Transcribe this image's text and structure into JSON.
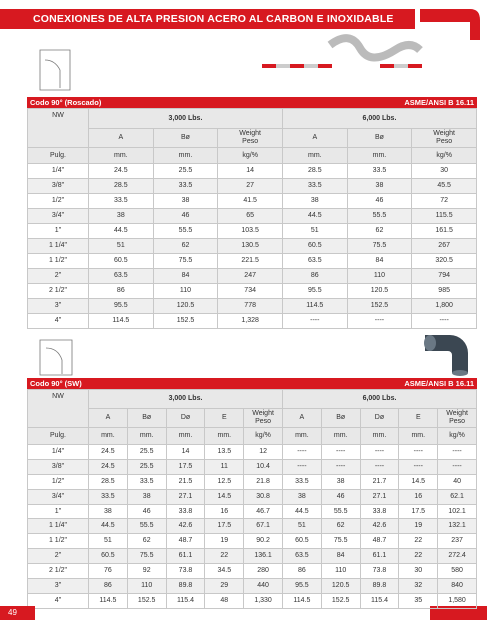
{
  "header": {
    "title": "CONEXIONES DE ALTA PRESION ACERO AL CARBON E INOXIDABLE"
  },
  "tables": [
    {
      "title": "Codo 90° (Roscado)",
      "standard": "ASME/ANSI B 16.11",
      "nw": "NW",
      "pressures": [
        "3,000 Lbs.",
        "6,000 Lbs."
      ],
      "columns": [
        "A",
        "Bø",
        "Weight\nPeso",
        "A",
        "Bø",
        "Weight\nPeso"
      ],
      "units": [
        "Pulg.",
        "mm.",
        "mm.",
        "kg/%",
        "mm.",
        "mm.",
        "kg/%"
      ],
      "rows": [
        [
          "1/4\"",
          "24.5",
          "25.5",
          "14",
          "28.5",
          "33.5",
          "30"
        ],
        [
          "3/8\"",
          "28.5",
          "33.5",
          "27",
          "33.5",
          "38",
          "45.5"
        ],
        [
          "1/2\"",
          "33.5",
          "38",
          "41.5",
          "38",
          "46",
          "72"
        ],
        [
          "3/4\"",
          "38",
          "46",
          "65",
          "44.5",
          "55.5",
          "115.5"
        ],
        [
          "1\"",
          "44.5",
          "55.5",
          "103.5",
          "51",
          "62",
          "161.5"
        ],
        [
          "1 1/4\"",
          "51",
          "62",
          "130.5",
          "60.5",
          "75.5",
          "267"
        ],
        [
          "1 1/2\"",
          "60.5",
          "75.5",
          "221.5",
          "63.5",
          "84",
          "320.5"
        ],
        [
          "2\"",
          "63.5",
          "84",
          "247",
          "86",
          "110",
          "794"
        ],
        [
          "2 1/2\"",
          "86",
          "110",
          "734",
          "95.5",
          "120.5",
          "985"
        ],
        [
          "3\"",
          "95.5",
          "120.5",
          "778",
          "114.5",
          "152.5",
          "1,800"
        ],
        [
          "4\"",
          "114.5",
          "152.5",
          "1,328",
          "----",
          "----",
          "----"
        ]
      ]
    },
    {
      "title": "Codo 90° (SW)",
      "standard": "ASME/ANSI B 16.11",
      "nw": "NW",
      "pressures": [
        "3,000 Lbs.",
        "6,000 Lbs."
      ],
      "columns": [
        "A",
        "Bø",
        "Dø",
        "E",
        "Weight\nPeso",
        "A",
        "Bø",
        "Dø",
        "E",
        "Weight\nPeso"
      ],
      "units": [
        "Pulg.",
        "mm.",
        "mm.",
        "mm.",
        "mm.",
        "kg/%",
        "mm.",
        "mm.",
        "mm.",
        "mm.",
        "kg/%"
      ],
      "rows": [
        [
          "1/4\"",
          "24.5",
          "25.5",
          "14",
          "13.5",
          "12",
          "----",
          "----",
          "----",
          "----",
          "----"
        ],
        [
          "3/8\"",
          "24.5",
          "25.5",
          "17.5",
          "11",
          "10.4",
          "----",
          "----",
          "----",
          "----",
          "----"
        ],
        [
          "1/2\"",
          "28.5",
          "33.5",
          "21.5",
          "12.5",
          "21.8",
          "33.5",
          "38",
          "21.7",
          "14.5",
          "40"
        ],
        [
          "3/4\"",
          "33.5",
          "38",
          "27.1",
          "14.5",
          "30.8",
          "38",
          "46",
          "27.1",
          "16",
          "62.1"
        ],
        [
          "1\"",
          "38",
          "46",
          "33.8",
          "16",
          "46.7",
          "44.5",
          "55.5",
          "33.8",
          "17.5",
          "102.1"
        ],
        [
          "1 1/4\"",
          "44.5",
          "55.5",
          "42.6",
          "17.5",
          "67.1",
          "51",
          "62",
          "42.6",
          "19",
          "132.1"
        ],
        [
          "1 1/2\"",
          "51",
          "62",
          "48.7",
          "19",
          "90.2",
          "60.5",
          "75.5",
          "48.7",
          "22",
          "237"
        ],
        [
          "2\"",
          "60.5",
          "75.5",
          "61.1",
          "22",
          "136.1",
          "63.5",
          "84",
          "61.1",
          "22",
          "272.4"
        ],
        [
          "2 1/2\"",
          "76",
          "92",
          "73.8",
          "34.5",
          "280",
          "86",
          "110",
          "73.8",
          "30",
          "580"
        ],
        [
          "3\"",
          "86",
          "110",
          "89.8",
          "29",
          "440",
          "95.5",
          "120.5",
          "89.8",
          "32",
          "840"
        ],
        [
          "4\"",
          "114.5",
          "152.5",
          "115.4",
          "48",
          "1,330",
          "114.5",
          "152.5",
          "115.4",
          "35",
          "1,580"
        ]
      ]
    }
  ],
  "footer": {
    "page": "49"
  }
}
